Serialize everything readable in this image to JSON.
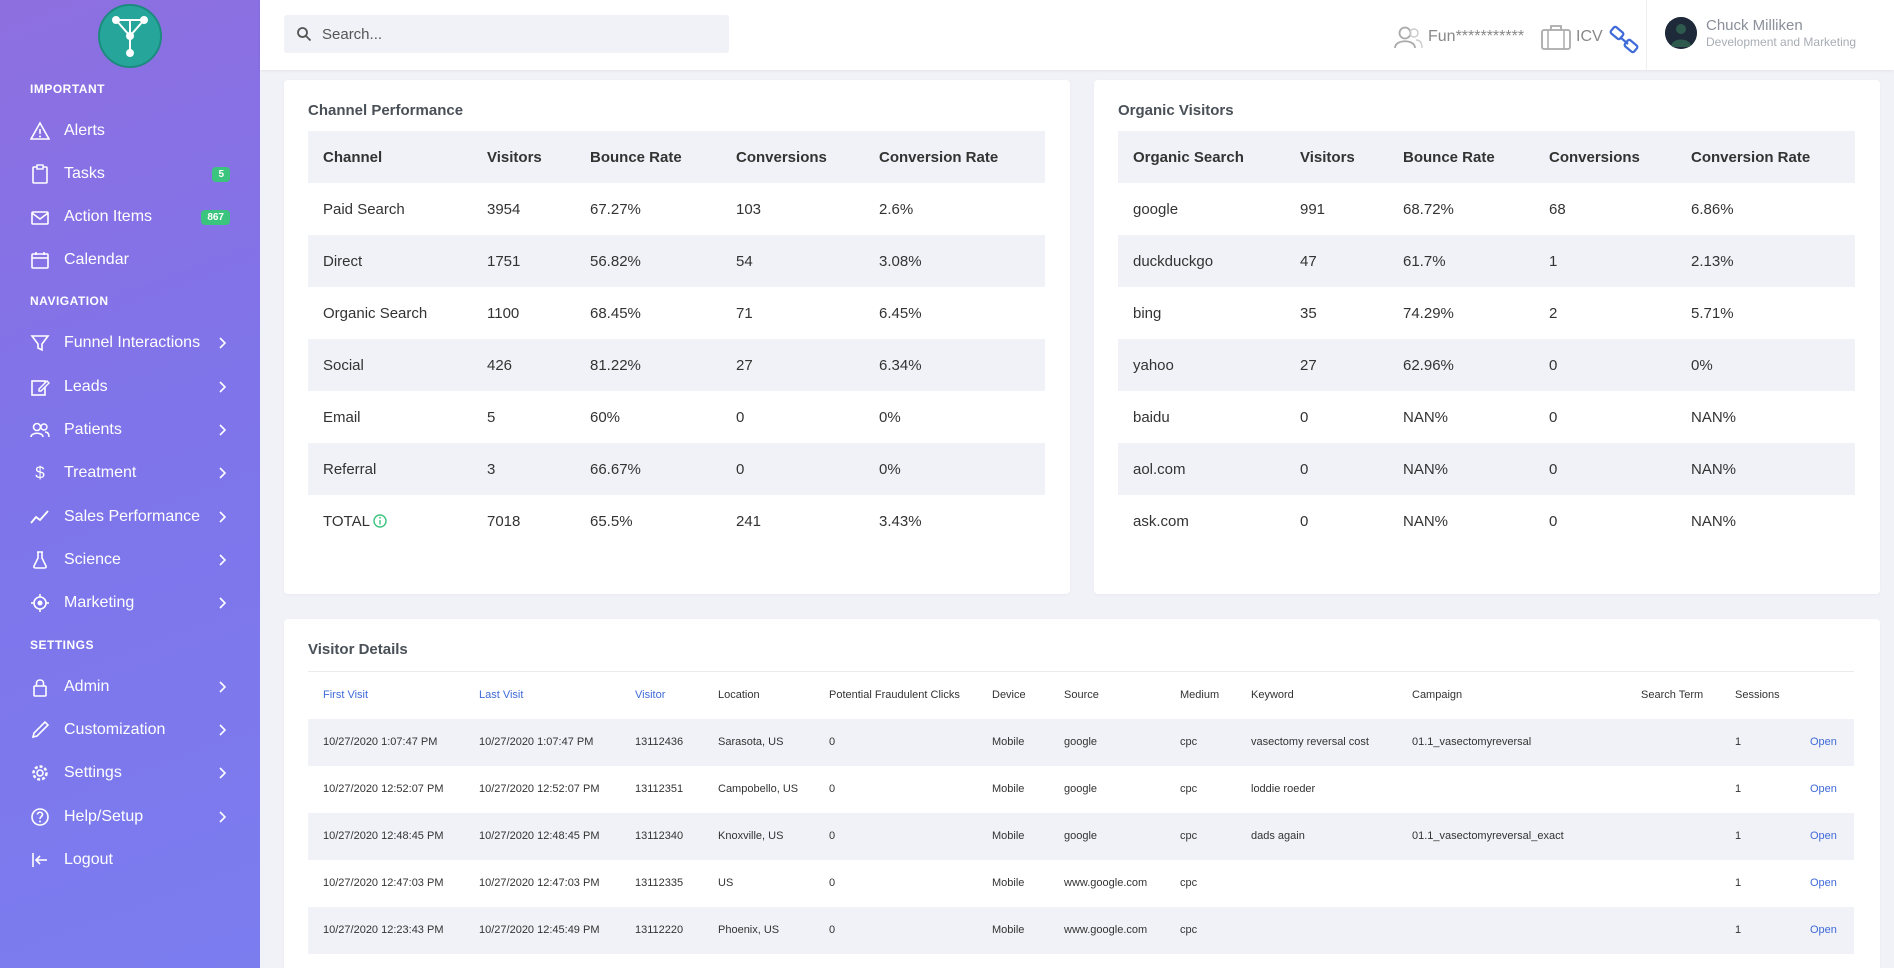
{
  "search": {
    "placeholder": "Search..."
  },
  "header": {
    "tool1_label": "Fun***********",
    "tool2_label": "ICV",
    "user_name": "Chuck Milliken",
    "user_role": "Development and Marketing"
  },
  "sidebar": {
    "sections": {
      "important": "IMPORTANT",
      "navigation": "NAVIGATION",
      "settings": "SETTINGS"
    },
    "items": [
      {
        "label": "Alerts"
      },
      {
        "label": "Tasks",
        "badge": "5"
      },
      {
        "label": "Action Items",
        "badge": "867"
      },
      {
        "label": "Calendar"
      },
      {
        "label": "Funnel Interactions"
      },
      {
        "label": "Leads"
      },
      {
        "label": "Patients"
      },
      {
        "label": "Treatment"
      },
      {
        "label": "Sales Performance"
      },
      {
        "label": "Science"
      },
      {
        "label": "Marketing"
      },
      {
        "label": "Admin"
      },
      {
        "label": "Customization"
      },
      {
        "label": "Settings"
      },
      {
        "label": "Help/Setup"
      },
      {
        "label": "Logout"
      }
    ]
  },
  "channel": {
    "title": "Channel Performance",
    "headers": [
      "Channel",
      "Visitors",
      "Bounce Rate",
      "Conversions",
      "Conversion Rate"
    ],
    "rows": [
      [
        "Paid Search",
        "3954",
        "67.27%",
        "103",
        "2.6%"
      ],
      [
        "Direct",
        "1751",
        "56.82%",
        "54",
        "3.08%"
      ],
      [
        "Organic Search",
        "1100",
        "68.45%",
        "71",
        "6.45%"
      ],
      [
        "Social",
        "426",
        "81.22%",
        "27",
        "6.34%"
      ],
      [
        "Email",
        "5",
        "60%",
        "0",
        "0%"
      ],
      [
        "Referral",
        "3",
        "66.67%",
        "0",
        "0%"
      ],
      [
        "TOTAL",
        "7018",
        "65.5%",
        "241",
        "3.43%"
      ]
    ]
  },
  "organic": {
    "title": "Organic Visitors",
    "headers": [
      "Organic Search",
      "Visitors",
      "Bounce Rate",
      "Conversions",
      "Conversion Rate"
    ],
    "rows": [
      [
        "google",
        "991",
        "68.72%",
        "68",
        "6.86%"
      ],
      [
        "duckduckgo",
        "47",
        "61.7%",
        "1",
        "2.13%"
      ],
      [
        "bing",
        "35",
        "74.29%",
        "2",
        "5.71%"
      ],
      [
        "yahoo",
        "27",
        "62.96%",
        "0",
        "0%"
      ],
      [
        "baidu",
        "0",
        "NAN%",
        "0",
        "NAN%"
      ],
      [
        "aol.com",
        "0",
        "NAN%",
        "0",
        "NAN%"
      ],
      [
        "ask.com",
        "0",
        "NAN%",
        "0",
        "NAN%"
      ]
    ]
  },
  "visitors": {
    "title": "Visitor Details",
    "headers": [
      "First Visit",
      "Last Visit",
      "Visitor",
      "Location",
      "Potential Fraudulent Clicks",
      "Device",
      "Source",
      "Medium",
      "Keyword",
      "Campaign",
      "Search Term",
      "Sessions",
      ""
    ],
    "open_label": "Open",
    "rows": [
      [
        "10/27/2020 1:07:47 PM",
        "10/27/2020 1:07:47 PM",
        "13112436",
        "Sarasota, US",
        "0",
        "Mobile",
        "google",
        "cpc",
        "vasectomy reversal cost",
        "01.1_vasectomyreversal",
        "",
        "1"
      ],
      [
        "10/27/2020 12:52:07 PM",
        "10/27/2020 12:52:07 PM",
        "13112351",
        "Campobello, US",
        "0",
        "Mobile",
        "google",
        "cpc",
        "loddie roeder",
        "",
        "",
        "1"
      ],
      [
        "10/27/2020 12:48:45 PM",
        "10/27/2020 12:48:45 PM",
        "13112340",
        "Knoxville, US",
        "0",
        "Mobile",
        "google",
        "cpc",
        "dads again",
        "01.1_vasectomyreversal_exact",
        "",
        "1"
      ],
      [
        "10/27/2020 12:47:03 PM",
        "10/27/2020 12:47:03 PM",
        "13112335",
        "US",
        "0",
        "Mobile",
        "www.google.com",
        "cpc",
        "",
        "",
        "",
        "1"
      ],
      [
        "10/27/2020 12:23:43 PM",
        "10/27/2020 12:45:49 PM",
        "13112220",
        "Phoenix, US",
        "0",
        "Mobile",
        "www.google.com",
        "cpc",
        "",
        "",
        "",
        "1"
      ]
    ]
  }
}
